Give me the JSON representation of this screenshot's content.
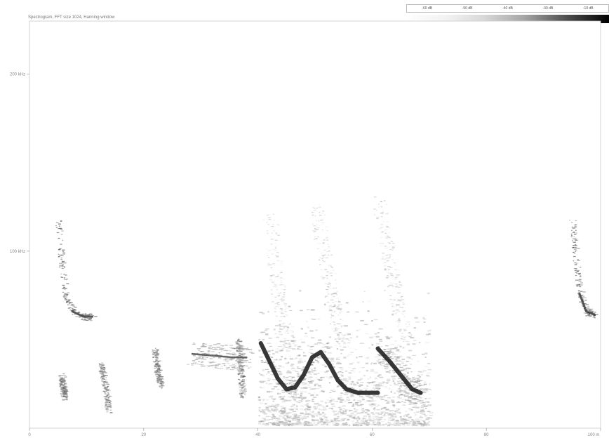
{
  "chart_data": {
    "type": "heatmap",
    "title": "Spectrogram, FFT size 1024, Hanning window",
    "xlabel": "",
    "ylabel": "",
    "xlim": [
      0,
      100
    ],
    "ylim": [
      0,
      230
    ],
    "x_ticks": [
      {
        "value": 0,
        "label": "0"
      },
      {
        "value": 20,
        "label": "20"
      },
      {
        "value": 40,
        "label": "40"
      },
      {
        "value": 60,
        "label": "60"
      },
      {
        "value": 80,
        "label": "80"
      },
      {
        "value": 100,
        "label": "100 m"
      }
    ],
    "y_ticks": [
      {
        "value": 100,
        "label": "100 kHz"
      },
      {
        "value": 200,
        "label": "200 kHz"
      }
    ],
    "colorbar": {
      "labels": [
        "-60 dB",
        "-50 dB",
        "-40 dB",
        "-30 dB",
        "-10 dB"
      ],
      "colors": [
        "#ffffff",
        "#d9d9d9",
        "#a6a6a6",
        "#4a4a4a",
        "#000000"
      ]
    },
    "calls": [
      {
        "type": "fm-sweep",
        "points": [
          [
            5.0,
            118
          ],
          [
            5.5,
            95
          ],
          [
            6.2,
            75
          ],
          [
            7.5,
            66
          ],
          [
            9.5,
            63
          ],
          [
            11.0,
            63
          ]
        ],
        "intensity": 0.55
      },
      {
        "type": "fm-sweep",
        "points": [
          [
            95.0,
            118
          ],
          [
            95.6,
            96
          ],
          [
            96.3,
            76
          ],
          [
            97.5,
            66
          ],
          [
            99.0,
            64
          ]
        ],
        "intensity": 0.55
      },
      {
        "type": "blob",
        "points": [
          [
            5.5,
            30
          ],
          [
            5.8,
            22
          ],
          [
            6.0,
            18
          ]
        ],
        "intensity": 0.35
      },
      {
        "type": "blob",
        "points": [
          [
            12.5,
            36
          ],
          [
            13.2,
            22
          ],
          [
            13.8,
            10
          ]
        ],
        "intensity": 0.4
      },
      {
        "type": "blob",
        "points": [
          [
            21.8,
            45
          ],
          [
            22.3,
            33
          ],
          [
            23.0,
            24
          ]
        ],
        "intensity": 0.45
      },
      {
        "type": "blob",
        "points": [
          [
            36.5,
            50
          ],
          [
            36.8,
            35
          ],
          [
            37.2,
            18
          ]
        ],
        "intensity": 0.5
      },
      {
        "type": "cf-tone",
        "points": [
          [
            28.5,
            42
          ],
          [
            32.0,
            41
          ],
          [
            35.5,
            40
          ],
          [
            38.0,
            40
          ]
        ],
        "intensity": 0.7
      },
      {
        "type": "strong-call",
        "points": [
          [
            40.5,
            48
          ],
          [
            42.0,
            38
          ],
          [
            43.5,
            28
          ],
          [
            45.0,
            22
          ],
          [
            46.5,
            23
          ],
          [
            48.0,
            30
          ],
          [
            49.5,
            40
          ],
          [
            51.0,
            43
          ],
          [
            52.5,
            36
          ],
          [
            54.0,
            27
          ],
          [
            55.5,
            22
          ],
          [
            57.5,
            20
          ],
          [
            59.5,
            20
          ],
          [
            61.0,
            20
          ]
        ],
        "intensity": 1.0
      },
      {
        "type": "strong-call",
        "points": [
          [
            61.0,
            45
          ],
          [
            63.0,
            38
          ],
          [
            65.0,
            30
          ],
          [
            67.0,
            22
          ],
          [
            68.5,
            20
          ]
        ],
        "intensity": 1.0
      },
      {
        "type": "fm-faint",
        "points": [
          [
            42.0,
            120
          ],
          [
            42.8,
            95
          ],
          [
            43.5,
            75
          ],
          [
            44.5,
            58
          ],
          [
            45.5,
            46
          ]
        ],
        "intensity": 0.25
      },
      {
        "type": "fm-faint",
        "points": [
          [
            50.0,
            126
          ],
          [
            51.0,
            108
          ],
          [
            52.0,
            90
          ],
          [
            53.0,
            72
          ],
          [
            54.0,
            56
          ],
          [
            55.0,
            46
          ]
        ],
        "intensity": 0.3
      },
      {
        "type": "fm-faint",
        "points": [
          [
            61.0,
            130
          ],
          [
            62.0,
            112
          ],
          [
            63.0,
            94
          ],
          [
            64.0,
            78
          ],
          [
            65.0,
            62
          ],
          [
            66.0,
            48
          ]
        ],
        "intensity": 0.28
      }
    ]
  }
}
